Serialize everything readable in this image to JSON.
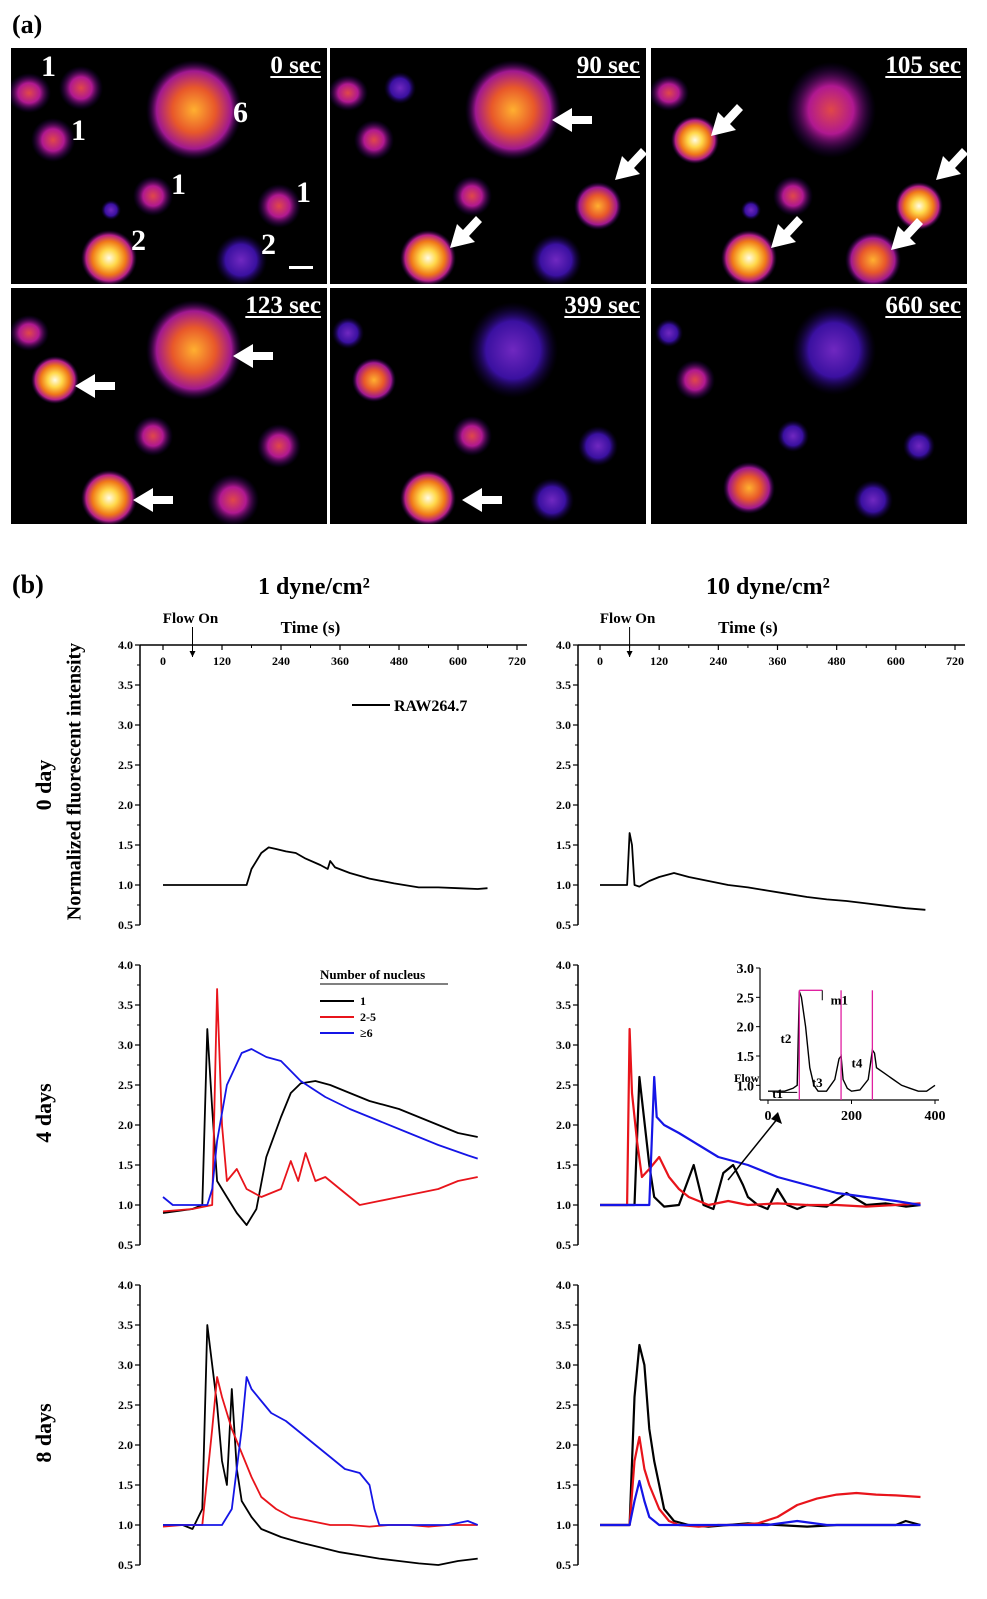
{
  "figure": {
    "part_a_label": "(a)",
    "part_b_label": "(b)",
    "column_titles": [
      "1 dyne/cm²",
      "10 dyne/cm²"
    ],
    "row_titles": [
      "0 day",
      "4 days",
      "8 days"
    ],
    "y_axis_label": "Normalized fluorescent intensity",
    "time_axis_label": "Time (s)",
    "flow_on_label": "Flow On"
  },
  "images": {
    "panels": [
      {
        "time": "0 sec",
        "labels": [
          "1",
          "1",
          "6",
          "1",
          "1",
          "2",
          "2"
        ]
      },
      {
        "time": "90 sec"
      },
      {
        "time": "105 sec"
      },
      {
        "time": "123 sec"
      },
      {
        "time": "399 sec"
      },
      {
        "time": "660 sec"
      }
    ]
  },
  "chart_data": [
    {
      "type": "line",
      "panel": "0 day / 1 dyne/cm²",
      "xlabel": "Time (s)",
      "xlim": [
        0,
        720
      ],
      "xticks": [
        0,
        120,
        240,
        360,
        480,
        600,
        720
      ],
      "ylim": [
        0.5,
        4.0
      ],
      "yticks": [
        0.5,
        1.0,
        1.5,
        2.0,
        2.5,
        3.0,
        3.5,
        4.0
      ],
      "legend": {
        "entries": [
          "RAW264.7"
        ],
        "placement": "top-right"
      },
      "annotations": [
        "Flow On"
      ],
      "series": [
        {
          "name": "RAW264.7",
          "color": "#000000",
          "x": [
            0,
            60,
            120,
            170,
            180,
            200,
            215,
            230,
            250,
            270,
            290,
            320,
            335,
            340,
            350,
            380,
            420,
            470,
            520,
            560,
            600,
            640,
            660
          ],
          "y": [
            1.0,
            1.0,
            1.0,
            1.0,
            1.2,
            1.4,
            1.47,
            1.45,
            1.42,
            1.4,
            1.33,
            1.25,
            1.2,
            1.3,
            1.22,
            1.15,
            1.08,
            1.02,
            0.97,
            0.97,
            0.96,
            0.95,
            0.96
          ]
        }
      ]
    },
    {
      "type": "line",
      "panel": "0 day / 10 dyne/cm²",
      "xlabel": "Time (s)",
      "xlim": [
        0,
        720
      ],
      "xticks": [
        0,
        120,
        240,
        360,
        480,
        600,
        720
      ],
      "ylim": [
        0.5,
        4.0
      ],
      "yticks": [
        0.5,
        1.0,
        1.5,
        2.0,
        2.5,
        3.0,
        3.5,
        4.0
      ],
      "annotations": [
        "Flow On"
      ],
      "series": [
        {
          "name": "RAW264.7",
          "color": "#000000",
          "x": [
            0,
            50,
            55,
            60,
            65,
            70,
            80,
            100,
            120,
            150,
            180,
            220,
            260,
            300,
            340,
            380,
            420,
            460,
            500,
            540,
            580,
            620,
            660
          ],
          "y": [
            1.0,
            1.0,
            1.0,
            1.65,
            1.5,
            1.0,
            0.98,
            1.05,
            1.1,
            1.15,
            1.1,
            1.05,
            1.0,
            0.97,
            0.93,
            0.89,
            0.85,
            0.82,
            0.8,
            0.77,
            0.74,
            0.71,
            0.69
          ]
        }
      ]
    },
    {
      "type": "line",
      "panel": "4 days / 1 dyne/cm²",
      "xlim": [
        0,
        720
      ],
      "ylim": [
        0.5,
        4.0
      ],
      "yticks": [
        0.5,
        1.0,
        1.5,
        2.0,
        2.5,
        3.0,
        3.5,
        4.0
      ],
      "legend": {
        "title": "Number of nucleus",
        "entries": [
          "1",
          "2-5",
          "≥6"
        ],
        "placement": "top-center"
      },
      "series": [
        {
          "name": "1",
          "color": "#000000",
          "x": [
            0,
            60,
            80,
            90,
            100,
            110,
            130,
            150,
            170,
            190,
            210,
            240,
            260,
            280,
            310,
            340,
            380,
            420,
            480,
            540,
            600,
            640
          ],
          "y": [
            0.9,
            0.95,
            1.0,
            3.2,
            2.2,
            1.3,
            1.1,
            0.9,
            0.75,
            0.95,
            1.6,
            2.1,
            2.4,
            2.52,
            2.55,
            2.5,
            2.4,
            2.3,
            2.2,
            2.05,
            1.9,
            1.85
          ]
        },
        {
          "name": "2-5",
          "color": "#e8141b",
          "x": [
            0,
            60,
            100,
            110,
            120,
            130,
            150,
            170,
            200,
            240,
            260,
            275,
            290,
            310,
            330,
            360,
            400,
            440,
            480,
            520,
            560,
            600,
            640
          ],
          "y": [
            0.92,
            0.95,
            1.0,
            3.7,
            2.0,
            1.3,
            1.45,
            1.2,
            1.1,
            1.2,
            1.55,
            1.3,
            1.65,
            1.3,
            1.35,
            1.2,
            1.0,
            1.05,
            1.1,
            1.15,
            1.2,
            1.3,
            1.35
          ]
        },
        {
          "name": "≥6",
          "color": "#1515e6",
          "x": [
            0,
            20,
            40,
            60,
            90,
            100,
            110,
            130,
            160,
            180,
            210,
            240,
            280,
            330,
            380,
            440,
            500,
            560,
            620,
            640
          ],
          "y": [
            1.1,
            1.0,
            1.0,
            1.0,
            1.0,
            1.2,
            1.8,
            2.5,
            2.9,
            2.95,
            2.85,
            2.8,
            2.55,
            2.35,
            2.2,
            2.05,
            1.9,
            1.75,
            1.62,
            1.58
          ]
        }
      ]
    },
    {
      "type": "line",
      "panel": "4 days / 10 dyne/cm²",
      "xlim": [
        0,
        720
      ],
      "ylim": [
        0.5,
        4.0
      ],
      "yticks": [
        0.5,
        1.0,
        1.5,
        2.0,
        2.5,
        3.0,
        3.5,
        4.0
      ],
      "series": [
        {
          "name": "1",
          "color": "#000000",
          "x": [
            0,
            60,
            70,
            80,
            100,
            110,
            130,
            160,
            190,
            210,
            230,
            250,
            270,
            290,
            300,
            320,
            340,
            360,
            380,
            400,
            420,
            460,
            500,
            540,
            580,
            620,
            650
          ],
          "y": [
            1.0,
            1.0,
            1.0,
            2.6,
            1.5,
            1.1,
            0.98,
            1.0,
            1.5,
            1.0,
            0.95,
            1.4,
            1.5,
            1.25,
            1.1,
            1.0,
            0.95,
            1.2,
            1.0,
            0.95,
            1.0,
            0.98,
            1.15,
            1.0,
            1.02,
            0.98,
            1.0
          ]
        },
        {
          "name": "2-5",
          "color": "#e8141b",
          "x": [
            0,
            55,
            60,
            65,
            75,
            85,
            100,
            120,
            140,
            160,
            180,
            220,
            260,
            300,
            360,
            420,
            480,
            540,
            600,
            650
          ],
          "y": [
            1.0,
            1.0,
            3.2,
            2.4,
            1.8,
            1.35,
            1.45,
            1.6,
            1.35,
            1.2,
            1.1,
            1.0,
            1.05,
            1.0,
            1.02,
            1.0,
            1.0,
            0.98,
            1.0,
            1.02
          ]
        },
        {
          "name": "≥6",
          "color": "#1515e6",
          "x": [
            0,
            60,
            100,
            110,
            115,
            130,
            160,
            200,
            240,
            300,
            360,
            420,
            480,
            540,
            600,
            650
          ],
          "y": [
            1.0,
            1.0,
            1.0,
            2.6,
            2.1,
            2.0,
            1.9,
            1.75,
            1.6,
            1.5,
            1.35,
            1.25,
            1.15,
            1.1,
            1.05,
            1.0
          ]
        }
      ],
      "inset": {
        "xlim": [
          0,
          400
        ],
        "xticks": [
          0,
          200,
          400
        ],
        "ylim": [
          0.75,
          3.0
        ],
        "yticks": [
          1.0,
          1.5,
          2.0,
          2.5,
          3.0
        ],
        "labels": [
          "m1",
          "t1",
          "t2",
          "t3",
          "t4",
          "Flow"
        ],
        "series": [
          {
            "name": "1",
            "color": "#000000",
            "x": [
              0,
              40,
              60,
              70,
              75,
              80,
              90,
              100,
              110,
              120,
              140,
              160,
              170,
              175,
              180,
              190,
              200,
              220,
              240,
              250,
              255,
              260,
              280,
              300,
              320,
              340,
              360,
              380,
              400
            ],
            "y": [
              0.9,
              0.9,
              0.95,
              1.0,
              2.6,
              2.5,
              2.0,
              1.3,
              1.0,
              0.9,
              0.9,
              1.1,
              1.45,
              1.5,
              1.1,
              0.95,
              0.9,
              0.92,
              1.1,
              1.6,
              1.55,
              1.3,
              1.2,
              1.1,
              1.0,
              0.95,
              0.9,
              0.9,
              1.0
            ]
          }
        ]
      }
    },
    {
      "type": "line",
      "panel": "8 days / 1 dyne/cm²",
      "xlim": [
        0,
        720
      ],
      "ylim": [
        0.5,
        4.0
      ],
      "yticks": [
        0.5,
        1.0,
        1.5,
        2.0,
        2.5,
        3.0,
        3.5,
        4.0
      ],
      "series": [
        {
          "name": "1",
          "color": "#000000",
          "x": [
            0,
            40,
            60,
            80,
            90,
            100,
            110,
            120,
            130,
            140,
            150,
            160,
            170,
            180,
            200,
            240,
            280,
            320,
            360,
            400,
            440,
            480,
            520,
            560,
            600,
            640
          ],
          "y": [
            1.0,
            1.0,
            0.95,
            1.2,
            3.5,
            3.0,
            2.5,
            1.8,
            1.5,
            2.7,
            1.7,
            1.3,
            1.2,
            1.1,
            0.95,
            0.85,
            0.78,
            0.72,
            0.66,
            0.62,
            0.58,
            0.55,
            0.52,
            0.5,
            0.55,
            0.58
          ]
        },
        {
          "name": "2-5",
          "color": "#e8141b",
          "x": [
            0,
            40,
            60,
            80,
            100,
            110,
            120,
            140,
            160,
            180,
            200,
            230,
            260,
            300,
            340,
            380,
            420,
            460,
            500,
            540,
            580,
            620,
            640
          ],
          "y": [
            0.98,
            1.0,
            1.0,
            1.0,
            2.2,
            2.85,
            2.6,
            2.2,
            1.9,
            1.6,
            1.35,
            1.2,
            1.1,
            1.05,
            1.0,
            1.0,
            0.98,
            1.0,
            1.0,
            0.98,
            1.0,
            1.0,
            1.0
          ]
        },
        {
          "name": "≥6",
          "color": "#1515e6",
          "x": [
            0,
            40,
            80,
            120,
            140,
            160,
            170,
            180,
            200,
            220,
            250,
            280,
            310,
            340,
            370,
            400,
            420,
            430,
            440,
            460,
            500,
            540,
            580,
            620,
            640
          ],
          "y": [
            1.0,
            1.0,
            1.0,
            1.0,
            1.2,
            2.2,
            2.85,
            2.7,
            2.55,
            2.4,
            2.3,
            2.15,
            2.0,
            1.85,
            1.7,
            1.65,
            1.5,
            1.2,
            1.0,
            1.0,
            1.0,
            1.0,
            1.0,
            1.05,
            1.0
          ]
        }
      ]
    },
    {
      "type": "line",
      "panel": "8 days / 10 dyne/cm²",
      "xlim": [
        0,
        720
      ],
      "ylim": [
        0.5,
        4.0
      ],
      "yticks": [
        0.5,
        1.0,
        1.5,
        2.0,
        2.5,
        3.0,
        3.5,
        4.0
      ],
      "series": [
        {
          "name": "1",
          "color": "#000000",
          "x": [
            0,
            40,
            60,
            70,
            80,
            90,
            100,
            110,
            120,
            130,
            150,
            180,
            220,
            260,
            300,
            360,
            420,
            480,
            540,
            600,
            620,
            650
          ],
          "y": [
            1.0,
            1.0,
            1.0,
            2.6,
            3.25,
            3.0,
            2.2,
            1.8,
            1.5,
            1.2,
            1.05,
            1.0,
            0.98,
            1.0,
            1.02,
            1.0,
            0.98,
            1.0,
            1.0,
            1.0,
            1.05,
            1.0
          ]
        },
        {
          "name": "2-5",
          "color": "#e8141b",
          "x": [
            0,
            40,
            60,
            70,
            80,
            90,
            100,
            120,
            140,
            160,
            200,
            240,
            280,
            320,
            360,
            400,
            440,
            480,
            520,
            560,
            600,
            650
          ],
          "y": [
            1.0,
            1.0,
            1.0,
            1.8,
            2.1,
            1.7,
            1.5,
            1.2,
            1.05,
            1.0,
            0.98,
            1.0,
            1.0,
            1.02,
            1.1,
            1.25,
            1.33,
            1.38,
            1.4,
            1.38,
            1.37,
            1.35
          ]
        },
        {
          "name": "≥6",
          "color": "#1515e6",
          "x": [
            0,
            40,
            60,
            70,
            80,
            90,
            100,
            120,
            160,
            220,
            280,
            340,
            400,
            460,
            520,
            580,
            650
          ],
          "y": [
            1.0,
            1.0,
            1.0,
            1.3,
            1.55,
            1.3,
            1.1,
            1.0,
            1.0,
            1.0,
            1.0,
            1.0,
            1.05,
            1.0,
            1.0,
            1.0,
            1.0
          ]
        }
      ]
    }
  ]
}
